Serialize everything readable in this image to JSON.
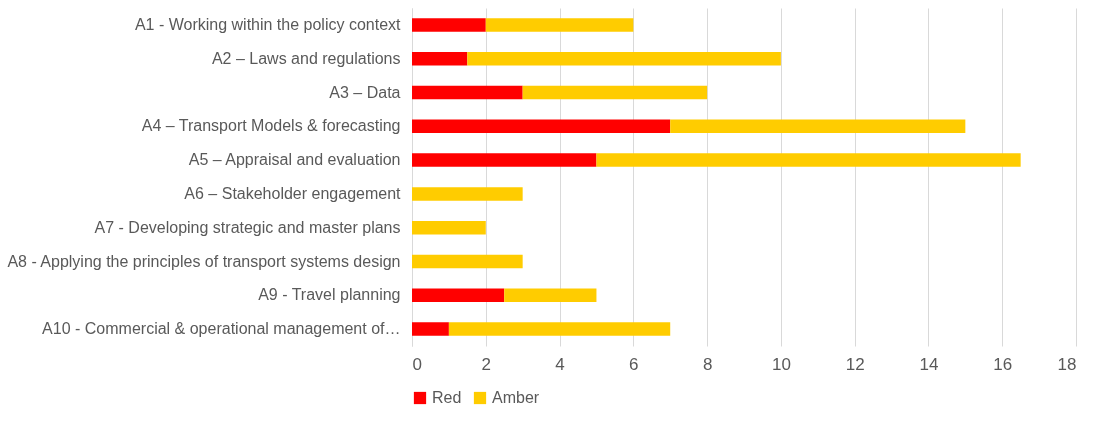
{
  "chart_data": {
    "type": "bar",
    "orientation": "horizontal",
    "stacked": true,
    "categories": [
      "A1 - Working within the policy context",
      "A2 – Laws and regulations",
      "A3 – Data",
      "A4 – Transport Models & forecasting",
      "A5 – Appraisal and evaluation",
      "A6 – Stakeholder engagement",
      "A7 - Developing strategic and master plans ",
      "A8 - Applying the principles of transport systems design",
      "A9 - Travel planning",
      "A10 - Commercial & operational management of…"
    ],
    "series": [
      {
        "name": "Red",
        "color": "#ff0000",
        "values": [
          2,
          1.5,
          3,
          7,
          5,
          0,
          0,
          0,
          2.5,
          1
        ]
      },
      {
        "name": "Amber",
        "color": "#ffcc00",
        "values": [
          4,
          8.5,
          5,
          8,
          11.5,
          3,
          2,
          3,
          2.5,
          6
        ]
      }
    ],
    "xlim": [
      0,
      18
    ],
    "xticks": [
      0,
      2,
      4,
      6,
      8,
      10,
      12,
      14,
      16,
      18
    ],
    "grid": "x",
    "legend": "bottom"
  }
}
